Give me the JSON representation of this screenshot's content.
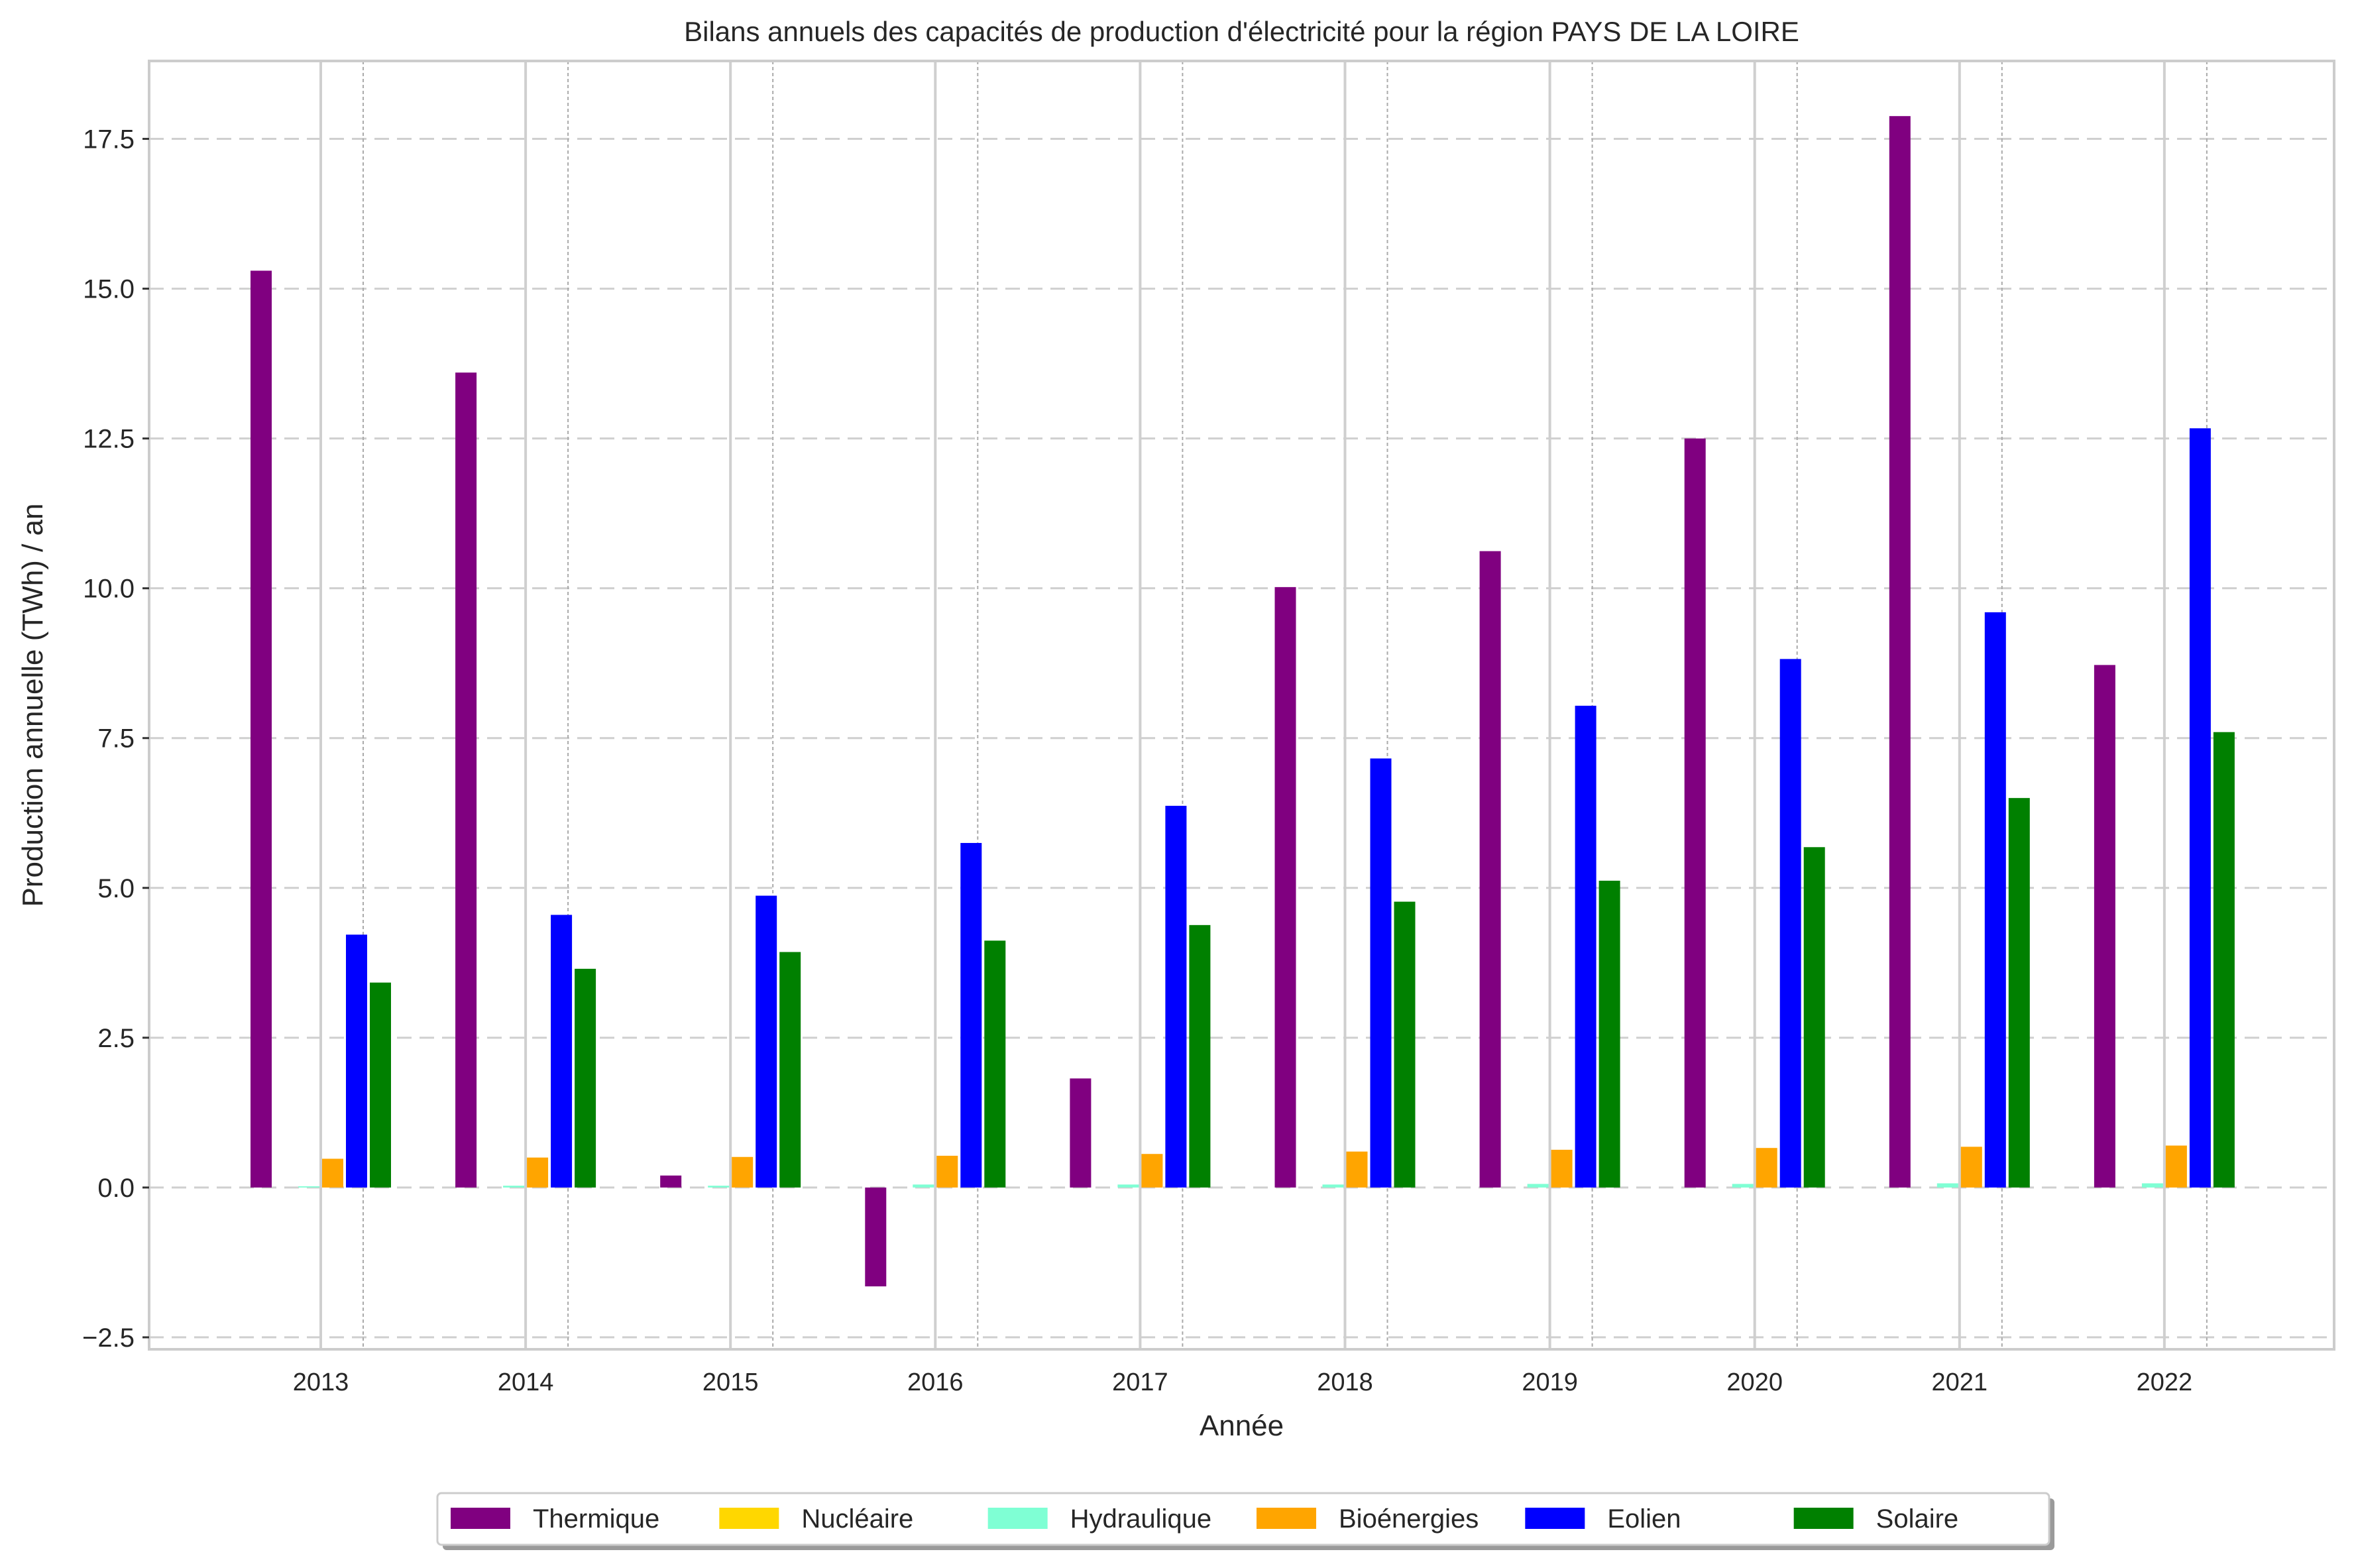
{
  "chart_data": {
    "type": "bar",
    "title": "Bilans annuels des capacités de production d'électricité pour la région PAYS DE LA LOIRE",
    "xlabel": "Année",
    "ylabel": "Production annuelle (TWh) / an",
    "categories": [
      "2013",
      "2014",
      "2015",
      "2016",
      "2017",
      "2018",
      "2019",
      "2020",
      "2021",
      "2022"
    ],
    "ylim": [
      -2.7,
      18.8
    ],
    "yticks": [
      -2.5,
      0.0,
      2.5,
      5.0,
      7.5,
      10.0,
      12.5,
      15.0,
      17.5
    ],
    "ytick_labels": [
      "−2.5",
      "0.0",
      "2.5",
      "5.0",
      "7.5",
      "10.0",
      "12.5",
      "15.0",
      "17.5"
    ],
    "grid": true,
    "legend_position": "bottom-center",
    "series": [
      {
        "name": "Thermique",
        "color": "#800080",
        "values": [
          15.3,
          13.6,
          0.2,
          -1.65,
          1.82,
          10.02,
          10.62,
          12.5,
          17.88,
          8.72
        ]
      },
      {
        "name": "Nucléaire",
        "color": "#FFD700",
        "values": [
          0,
          0,
          0,
          0,
          0,
          0,
          0,
          0,
          0,
          0
        ]
      },
      {
        "name": "Hydraulique",
        "color": "#7FFFD4",
        "values": [
          0.02,
          0.03,
          0.03,
          0.05,
          0.05,
          0.05,
          0.06,
          0.06,
          0.07,
          0.07
        ]
      },
      {
        "name": "Bioénergies",
        "color": "#FFA500",
        "values": [
          0.48,
          0.5,
          0.51,
          0.53,
          0.56,
          0.6,
          0.63,
          0.66,
          0.68,
          0.7
        ]
      },
      {
        "name": "Eolien",
        "color": "#0000FF",
        "values": [
          4.22,
          4.55,
          4.87,
          5.75,
          6.37,
          7.16,
          8.04,
          8.82,
          9.6,
          12.67
        ]
      },
      {
        "name": "Solaire",
        "color": "#008000",
        "values": [
          3.42,
          3.65,
          3.93,
          4.12,
          4.38,
          4.77,
          5.12,
          5.68,
          6.5,
          7.6
        ]
      }
    ]
  }
}
